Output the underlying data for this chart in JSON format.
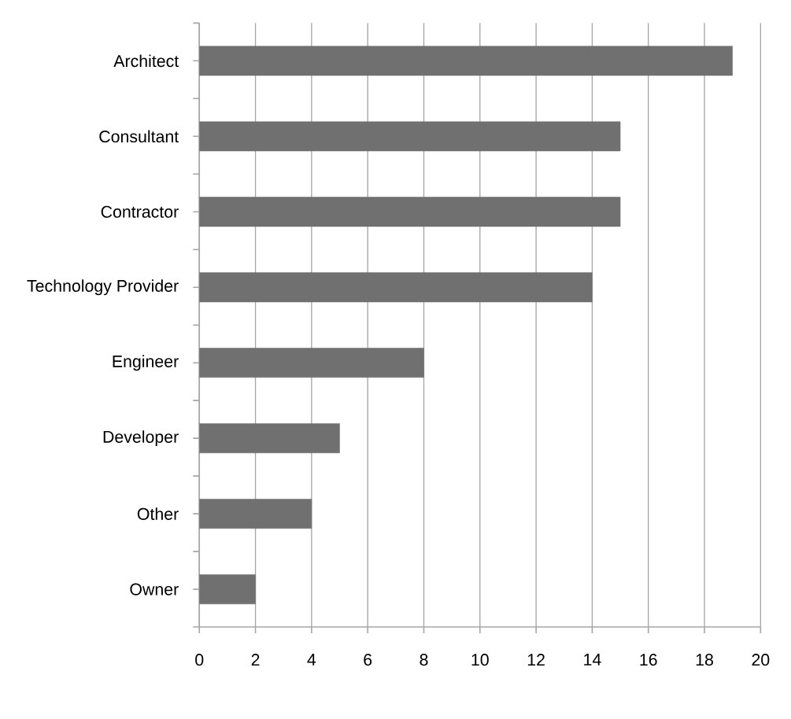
{
  "chart_data": {
    "type": "bar",
    "orientation": "horizontal",
    "categories": [
      "Architect",
      "Consultant",
      "Contractor",
      "Technology Provider",
      "Engineer",
      "Developer",
      "Other",
      "Owner"
    ],
    "values": [
      19,
      15,
      15,
      14,
      8,
      5,
      4,
      2
    ],
    "color": "#707070",
    "xlim": [
      0,
      20
    ],
    "xticks": [
      0,
      2,
      4,
      6,
      8,
      10,
      12,
      14,
      16,
      18,
      20
    ],
    "grid": "x"
  }
}
